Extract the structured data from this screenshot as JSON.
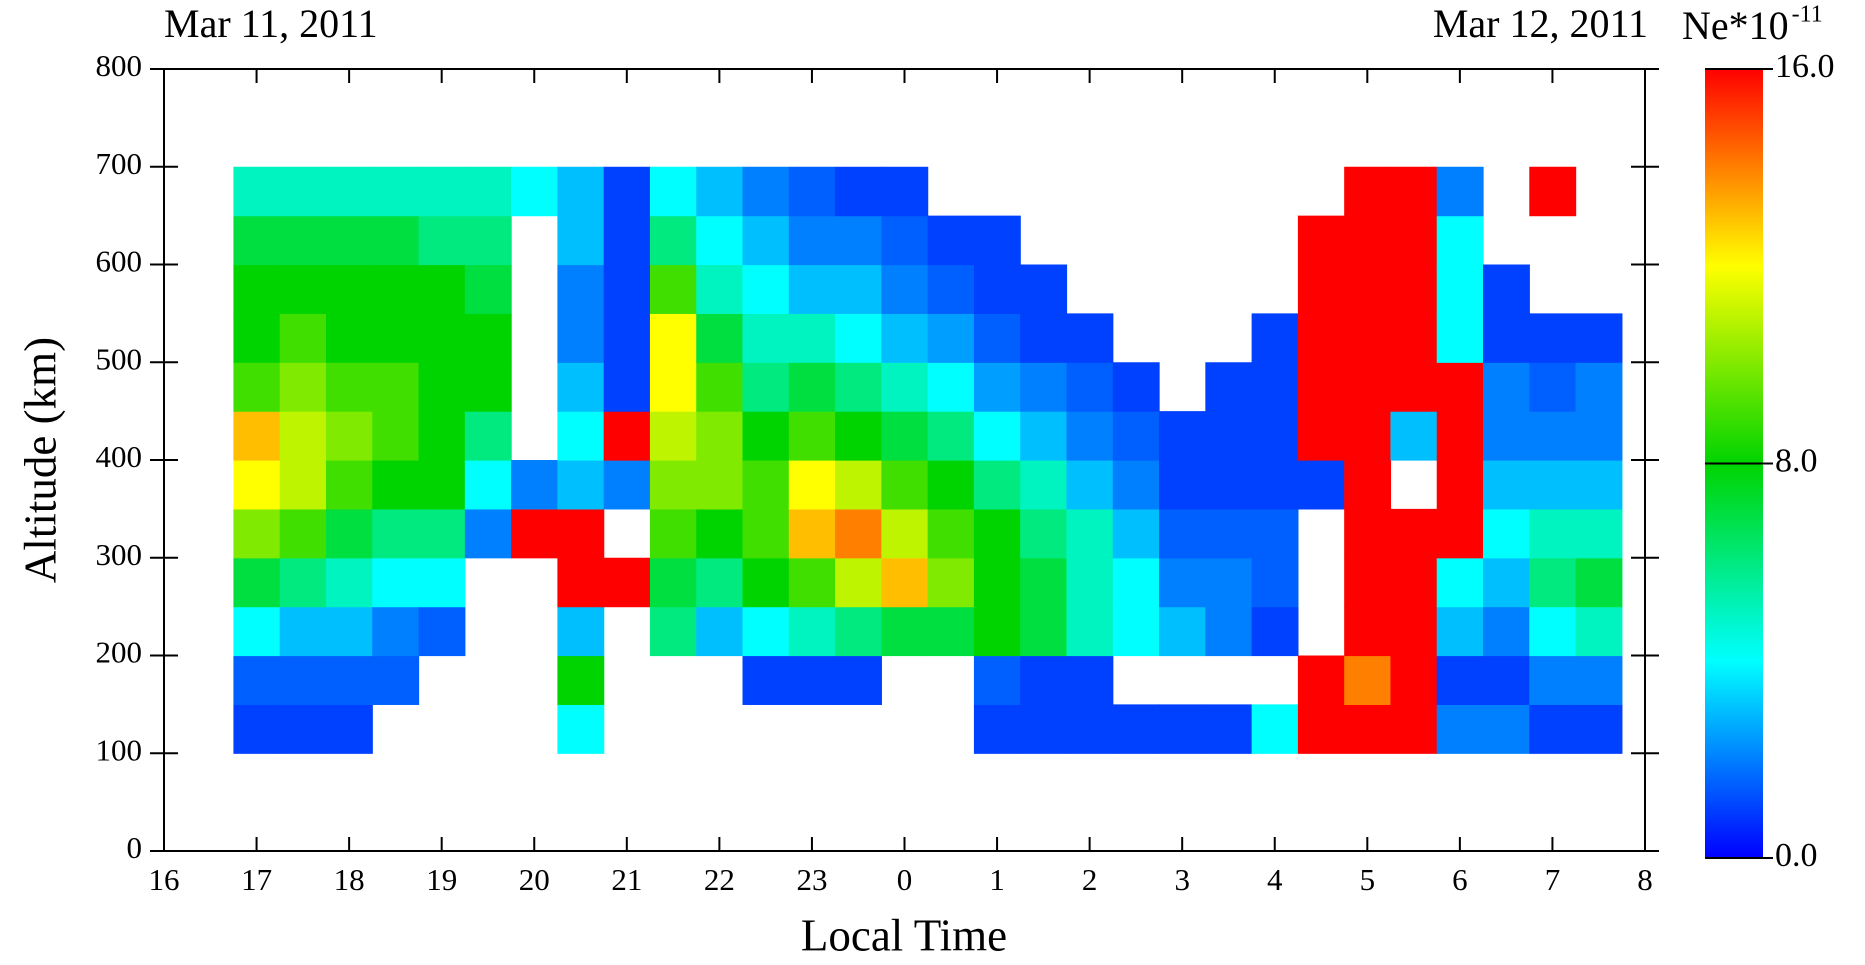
{
  "chart_data": {
    "type": "heatmap",
    "annotations": [
      "Mar 11, 2011",
      "Mar 12, 2011"
    ],
    "colorbar_label": "Ne*10",
    "colorbar_label_exponent": "-11",
    "xlabel": "Local Time",
    "ylabel": "Altitude (km)",
    "xlim": [
      16,
      32
    ],
    "ylim": [
      0,
      800
    ],
    "zlim": [
      0,
      16
    ],
    "xticks": [
      16,
      17,
      18,
      19,
      20,
      21,
      22,
      23,
      {
        "value": 24,
        "label": "0"
      },
      {
        "value": 25,
        "label": "1"
      },
      {
        "value": 26,
        "label": "2"
      },
      {
        "value": 27,
        "label": "3"
      },
      {
        "value": 28,
        "label": "4"
      },
      {
        "value": 29,
        "label": "5"
      },
      {
        "value": 30,
        "label": "6"
      },
      {
        "value": 31,
        "label": "7"
      },
      {
        "value": 32,
        "label": "8"
      }
    ],
    "yticks": [
      0,
      100,
      200,
      300,
      400,
      500,
      600,
      700,
      800
    ],
    "zticks": [
      {
        "value": 0,
        "label": "0.0"
      },
      {
        "value": 8,
        "label": "8.0"
      },
      {
        "value": 16,
        "label": "16.0"
      }
    ],
    "colormap": [
      "#0000ff",
      "#00ffff",
      "#00d400",
      "#ffff00",
      "#ff0000"
    ],
    "x": [
      17,
      17.5,
      18,
      18.5,
      19,
      19.5,
      20,
      20.5,
      21,
      21.5,
      22,
      22.5,
      23,
      23.5,
      24,
      24.5,
      25,
      25.5,
      26,
      26.5,
      27,
      27.5,
      28,
      28.5,
      29,
      29.5,
      30,
      30.5,
      31,
      31.5
    ],
    "y": [
      125,
      175,
      225,
      275,
      325,
      375,
      425,
      475,
      525,
      575,
      625,
      675
    ],
    "values": [
      [
        1,
        1.5,
        4,
        7,
        10,
        12,
        13,
        9,
        8,
        8,
        7,
        5
      ],
      [
        1,
        1.5,
        3,
        6,
        9,
        11,
        11,
        10,
        9,
        8,
        7,
        5
      ],
      [
        1,
        1.5,
        3,
        5,
        7,
        9,
        10,
        9,
        8,
        8,
        7,
        5
      ],
      [
        null,
        1.5,
        2,
        4,
        6,
        8,
        9,
        9,
        8,
        8,
        7,
        5
      ],
      [
        null,
        null,
        1.5,
        4,
        6,
        8,
        8,
        8,
        8,
        8,
        6,
        5
      ],
      [
        null,
        null,
        null,
        null,
        2,
        4,
        6,
        8,
        8,
        7,
        6,
        5
      ],
      [
        null,
        null,
        null,
        null,
        16,
        2,
        null,
        null,
        null,
        null,
        null,
        4
      ],
      [
        4,
        8,
        3,
        16,
        16,
        3,
        4,
        3,
        2,
        2,
        3,
        3
      ],
      [
        null,
        null,
        null,
        16,
        null,
        2,
        16,
        1,
        1,
        1,
        1,
        1
      ],
      [
        null,
        null,
        6,
        7,
        9,
        10,
        11,
        12,
        12,
        9,
        6,
        4
      ],
      [
        null,
        null,
        3,
        6,
        8,
        10,
        10,
        9,
        7,
        5,
        4,
        3
      ],
      [
        null,
        1,
        4,
        8,
        9,
        9,
        8,
        6,
        5,
        4,
        3,
        2
      ],
      [
        null,
        1,
        5,
        9,
        13,
        12,
        9,
        7,
        5,
        3,
        2,
        1.5
      ],
      [
        null,
        1,
        6,
        11,
        14,
        11,
        8,
        6,
        4,
        3,
        2,
        1
      ],
      [
        null,
        null,
        7,
        13,
        11,
        9,
        7,
        5,
        3,
        2,
        1.5,
        1
      ],
      [
        null,
        null,
        7,
        10,
        9,
        8,
        6,
        4,
        2.5,
        1.5,
        1,
        null
      ],
      [
        1,
        1.5,
        8,
        8,
        8,
        6,
        4,
        2.5,
        1.5,
        1,
        1,
        null
      ],
      [
        1,
        1,
        7,
        7,
        6,
        5,
        3,
        2,
        1,
        1,
        null,
        null
      ],
      [
        1,
        1,
        5,
        5,
        5,
        3,
        2,
        1.5,
        1,
        null,
        null,
        null
      ],
      [
        1,
        null,
        4,
        4,
        3,
        2,
        1.5,
        1,
        null,
        null,
        null,
        null
      ],
      [
        1,
        null,
        3,
        2,
        1.5,
        1,
        1,
        null,
        null,
        null,
        null,
        null
      ],
      [
        1,
        null,
        2,
        2,
        1.5,
        1,
        1,
        1,
        null,
        null,
        null,
        null
      ],
      [
        4,
        null,
        1,
        1.5,
        1.5,
        1,
        1,
        1,
        1,
        null,
        null,
        null
      ],
      [
        16,
        16,
        null,
        null,
        null,
        1,
        16,
        16,
        16,
        16,
        16,
        null
      ],
      [
        16,
        14,
        16,
        16,
        16,
        16,
        16,
        16,
        16,
        16,
        16,
        16
      ],
      [
        16,
        16,
        16,
        16,
        16,
        null,
        3,
        16,
        16,
        16,
        16,
        16
      ],
      [
        2,
        1,
        3,
        4,
        16,
        16,
        16,
        16,
        4,
        4,
        4,
        2
      ],
      [
        2,
        1,
        2,
        3,
        4,
        3,
        2,
        2,
        1,
        1,
        null,
        null
      ],
      [
        1,
        2,
        4,
        6,
        5,
        3,
        2,
        1.5,
        1,
        null,
        null,
        16
      ],
      [
        1,
        2,
        5,
        7,
        5,
        3,
        2,
        2,
        1,
        null,
        null,
        null
      ]
    ]
  }
}
